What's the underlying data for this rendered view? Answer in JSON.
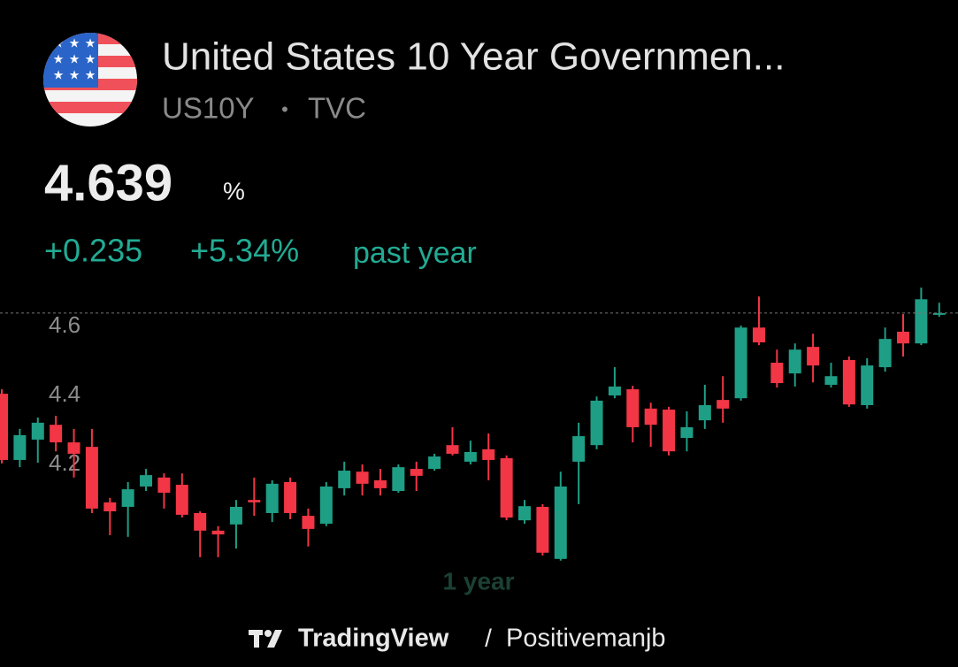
{
  "header": {
    "title": "United States 10 Year Governmen...",
    "symbol": "US10Y",
    "separator": "•",
    "exchange": "TVC",
    "price": 4.639,
    "unit": "%",
    "change": "+0.235",
    "change_percent": "+5.34%",
    "period": "past year"
  },
  "chart_data": {
    "type": "candlestick",
    "range_label": "1 year",
    "categories": [
      null,
      null,
      null,
      null,
      null,
      null,
      null,
      null,
      null,
      null,
      null,
      null,
      null,
      null,
      null,
      null,
      null,
      null,
      null,
      null,
      null,
      null,
      null,
      null,
      null,
      null,
      null,
      null,
      null,
      null,
      null,
      null,
      null,
      null,
      null,
      null,
      null,
      null,
      null,
      null,
      null,
      null,
      null,
      null,
      null,
      null,
      null,
      null,
      null,
      null,
      null,
      null,
      null
    ],
    "open": [
      4.405,
      4.213,
      4.272,
      4.315,
      4.264,
      4.251,
      4.09,
      4.077,
      4.136,
      4.162,
      4.141,
      4.059,
      4.008,
      4.026,
      4.097,
      4.059,
      4.149,
      4.051,
      4.028,
      4.131,
      4.179,
      4.154,
      4.123,
      4.187,
      4.187,
      4.256,
      4.208,
      4.244,
      4.218,
      4.038,
      4.077,
      3.926,
      4.208,
      4.256,
      4.4,
      4.418,
      4.362,
      4.359,
      4.277,
      4.328,
      4.387,
      4.392,
      4.597,
      4.495,
      4.464,
      4.541,
      4.431,
      4.503,
      4.372,
      4.482,
      4.585,
      4.551,
      4.636
    ],
    "high": [
      4.418,
      4.303,
      4.336,
      4.341,
      4.303,
      4.303,
      4.103,
      4.149,
      4.187,
      4.174,
      4.174,
      4.064,
      4.021,
      4.097,
      4.162,
      4.154,
      4.162,
      4.072,
      4.149,
      4.208,
      4.2,
      4.187,
      4.2,
      4.208,
      4.231,
      4.308,
      4.269,
      4.29,
      4.226,
      4.097,
      4.085,
      4.179,
      4.321,
      4.397,
      4.482,
      4.428,
      4.379,
      4.367,
      4.354,
      4.431,
      4.456,
      4.603,
      4.687,
      4.533,
      4.551,
      4.579,
      4.495,
      4.513,
      4.508,
      4.597,
      4.636,
      4.713,
      4.669
    ],
    "low": [
      4.203,
      4.192,
      4.205,
      4.238,
      4.162,
      4.059,
      3.995,
      3.99,
      4.123,
      4.072,
      4.046,
      3.931,
      3.931,
      3.956,
      4.051,
      4.033,
      4.041,
      3.962,
      4.021,
      4.11,
      4.11,
      4.11,
      4.118,
      4.123,
      4.182,
      4.226,
      4.2,
      4.154,
      4.038,
      4.028,
      3.936,
      3.921,
      4.085,
      4.244,
      4.392,
      4.264,
      4.251,
      4.226,
      4.238,
      4.303,
      4.321,
      4.385,
      4.546,
      4.423,
      4.426,
      4.438,
      4.423,
      4.367,
      4.362,
      4.469,
      4.513,
      4.546,
      4.628
    ],
    "close": [
      4.213,
      4.285,
      4.321,
      4.264,
      4.231,
      4.072,
      4.064,
      4.128,
      4.169,
      4.118,
      4.054,
      4.008,
      3.997,
      4.077,
      4.09,
      4.144,
      4.059,
      4.013,
      4.136,
      4.182,
      4.144,
      4.131,
      4.192,
      4.167,
      4.223,
      4.231,
      4.236,
      4.213,
      4.046,
      4.079,
      3.944,
      4.136,
      4.282,
      4.385,
      4.426,
      4.308,
      4.315,
      4.238,
      4.308,
      4.372,
      4.362,
      4.597,
      4.554,
      4.436,
      4.533,
      4.487,
      4.456,
      4.374,
      4.487,
      4.564,
      4.551,
      4.679,
      4.639
    ],
    "up_color": "#1f9e86",
    "down_color": "#f23645",
    "ylim": [
      3.905,
      4.726
    ],
    "yticks": [
      4.2,
      4.4,
      4.6
    ]
  },
  "footer": {
    "brand": "TradingView",
    "separator": "/",
    "author": "Positivemanjb"
  }
}
